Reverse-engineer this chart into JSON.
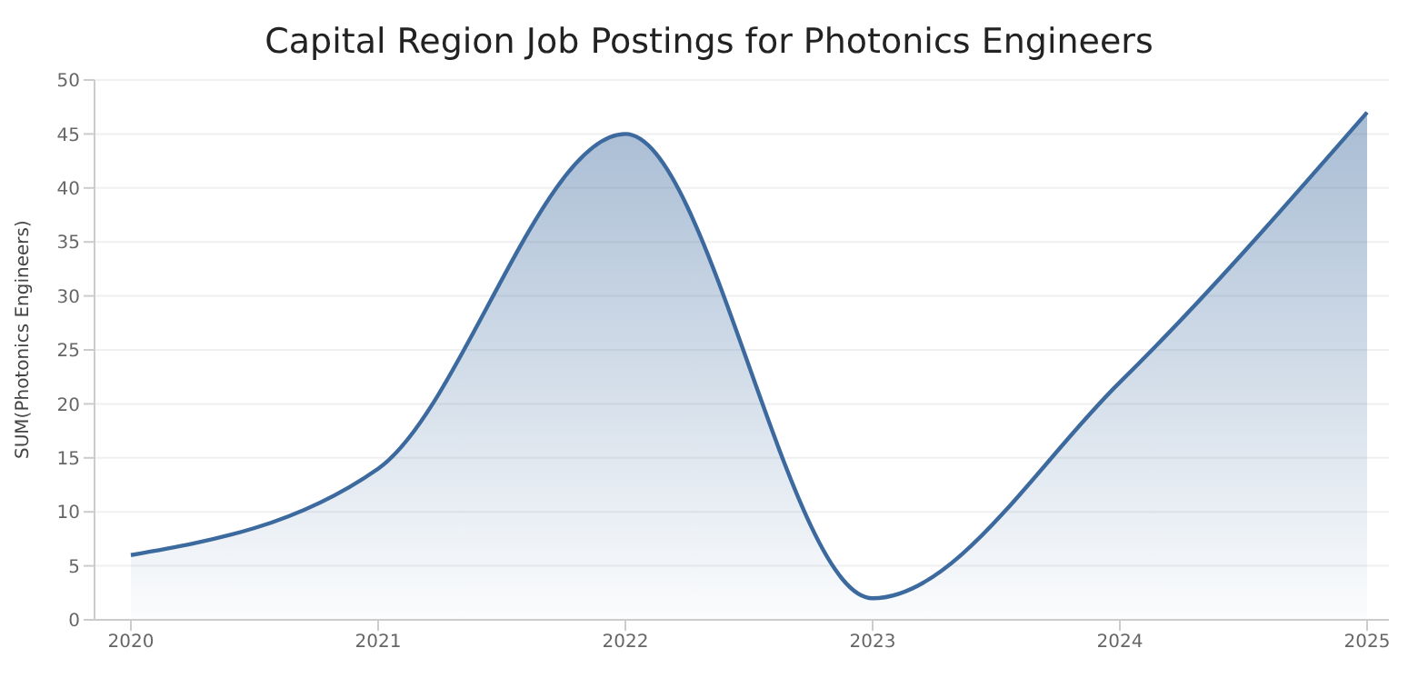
{
  "chart_data": {
    "type": "area",
    "title": "Capital Region Job Postings for Photonics Engineers",
    "ylabel": "SUM(Photonics Engineers)",
    "categories": [
      "2020",
      "2021",
      "2022",
      "2023",
      "2024",
      "2025"
    ],
    "series": [
      {
        "color": "#3d6a9e",
        "values": [
          6,
          14,
          45,
          2,
          22,
          47
        ]
      }
    ],
    "ylim": [
      0,
      50
    ],
    "yticks": [
      0,
      5,
      10,
      15,
      20,
      25,
      30,
      35,
      40,
      45,
      50
    ],
    "grid": "y"
  }
}
